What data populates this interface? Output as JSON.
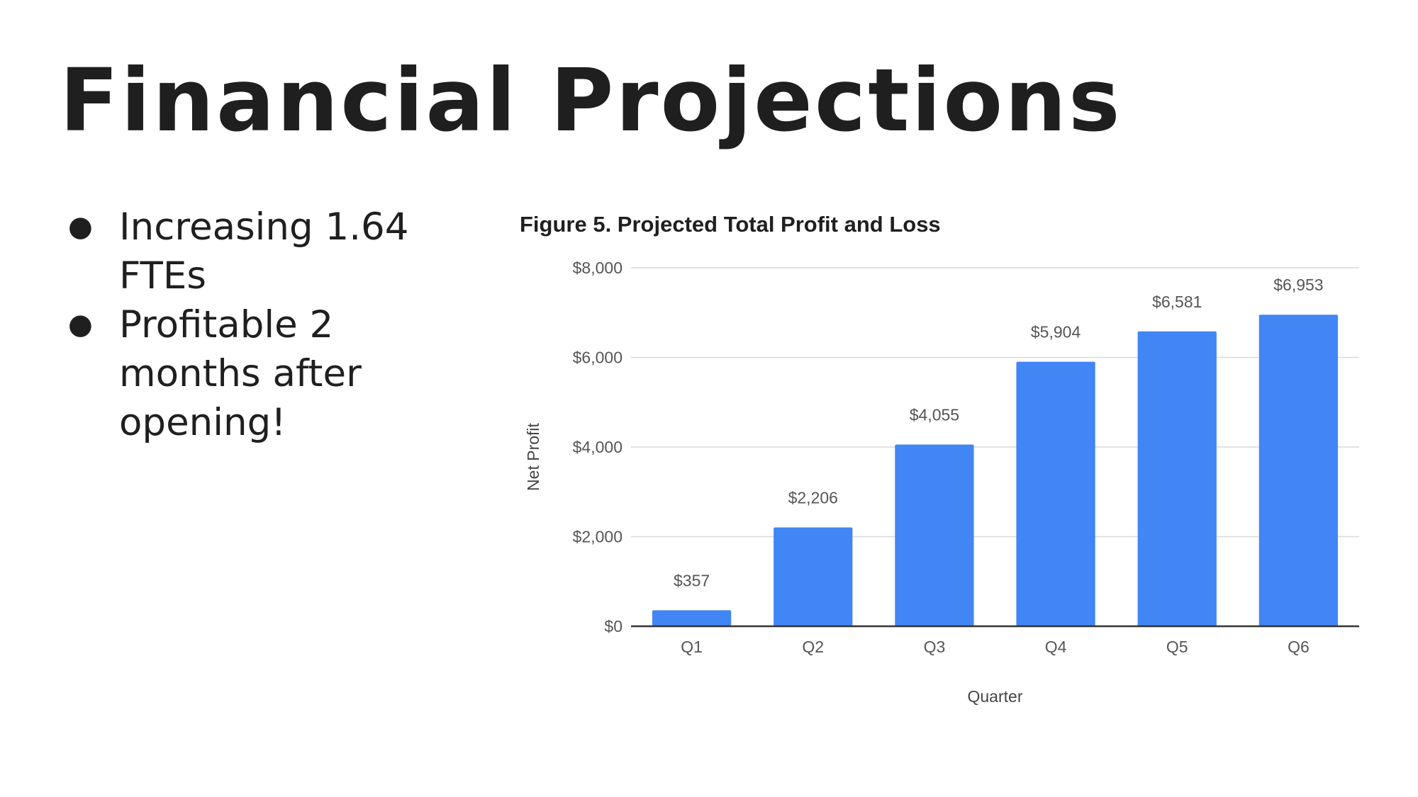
{
  "slide": {
    "title": "Financial Projections",
    "bullets": [
      "Increasing 1.64 FTEs",
      "Profitable 2 months after opening!"
    ],
    "bullet_glyph": "●"
  },
  "chart_data": {
    "type": "bar",
    "title": "Figure 5. Projected Total Profit and Loss",
    "xlabel": "Quarter",
    "ylabel": "Net Profit",
    "categories": [
      "Q1",
      "Q2",
      "Q3",
      "Q4",
      "Q5",
      "Q6"
    ],
    "values": [
      357,
      2206,
      4055,
      5904,
      6581,
      6953
    ],
    "data_labels": [
      "$357",
      "$2,206",
      "$4,055",
      "$5,904",
      "$6,581",
      "$6,953"
    ],
    "ylim": [
      0,
      8000
    ],
    "yticks": [
      0,
      2000,
      4000,
      6000,
      8000
    ],
    "ytick_labels": [
      "$0",
      "$2,000",
      "$4,000",
      "$6,000",
      "$8,000"
    ],
    "grid": true,
    "legend": "none",
    "colors": {
      "bar": "#4285f4",
      "grid": "#d9d9d9",
      "baseline": "#333333"
    }
  }
}
